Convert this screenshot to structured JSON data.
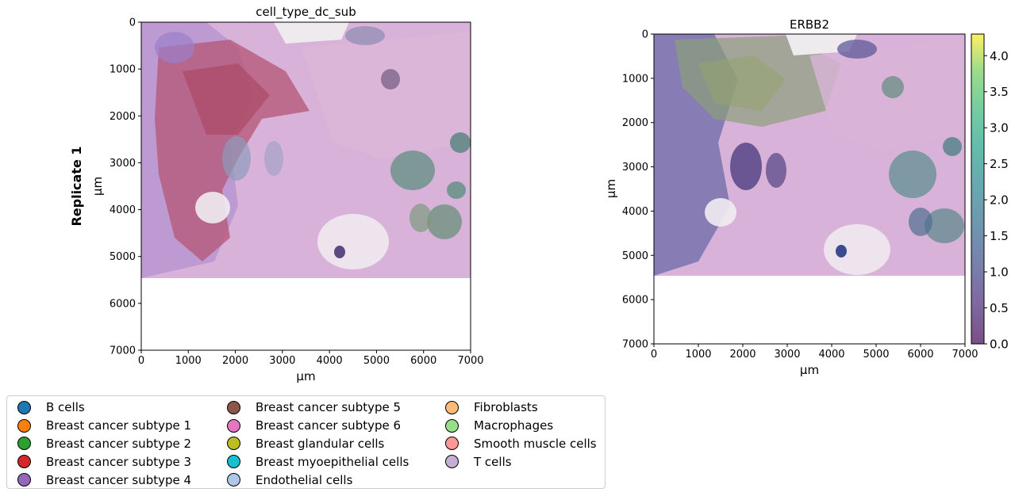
{
  "row_label": "Replicate 1",
  "chart_data": [
    {
      "type": "spatial-scatter",
      "title": "cell_type_dc_sub",
      "xlabel": "µm",
      "ylabel": "µm",
      "xlim": [
        0,
        7000
      ],
      "ylim": [
        7000,
        0
      ],
      "xticks": [
        "0",
        "1000",
        "2000",
        "3000",
        "4000",
        "5000",
        "6000",
        "7000"
      ],
      "yticks": [
        "0",
        "1000",
        "2000",
        "3000",
        "4000",
        "5000",
        "6000",
        "7000"
      ],
      "image_extent": {
        "x": [
          0,
          7000
        ],
        "y": [
          0,
          5500
        ]
      },
      "legend_placement": "bottom",
      "categories": [
        {
          "name": "B cells",
          "color": "#1f77b4"
        },
        {
          "name": "Breast cancer subtype 1",
          "color": "#ff7f0e"
        },
        {
          "name": "Breast cancer subtype 2",
          "color": "#2ca02c"
        },
        {
          "name": "Breast cancer subtype 3",
          "color": "#d62728"
        },
        {
          "name": "Breast cancer subtype 4",
          "color": "#9467bd"
        },
        {
          "name": "Breast cancer subtype 5",
          "color": "#8c564b"
        },
        {
          "name": "Breast cancer subtype 6",
          "color": "#e377c2"
        },
        {
          "name": "Breast glandular cells",
          "color": "#bcbd22"
        },
        {
          "name": "Breast myoepithelial cells",
          "color": "#17becf"
        },
        {
          "name": "Endothelial cells",
          "color": "#aec7e8"
        },
        {
          "name": "Fibroblasts",
          "color": "#ffbb78"
        },
        {
          "name": "Macrophages",
          "color": "#98df8a"
        },
        {
          "name": "Smooth muscle cells",
          "color": "#ff9896"
        },
        {
          "name": "T cells",
          "color": "#c5b0d5"
        }
      ]
    },
    {
      "type": "spatial-scatter",
      "title": "ERBB2",
      "xlabel": "µm",
      "ylabel": "µm",
      "xlim": [
        0,
        7000
      ],
      "ylim": [
        7000,
        0
      ],
      "xticks": [
        "0",
        "1000",
        "2000",
        "3000",
        "4000",
        "5000",
        "6000",
        "7000"
      ],
      "yticks": [
        "0",
        "1000",
        "2000",
        "3000",
        "4000",
        "5000",
        "6000",
        "7000"
      ],
      "image_extent": {
        "x": [
          0,
          7000
        ],
        "y": [
          0,
          5500
        ]
      },
      "colorbar": {
        "min": 0.0,
        "max": 4.3,
        "ticks": [
          "0.0",
          "0.5",
          "1.0",
          "1.5",
          "2.0",
          "2.5",
          "3.0",
          "3.5",
          "4.0"
        ],
        "colormap": "viridis",
        "alpha": 0.7
      }
    }
  ]
}
